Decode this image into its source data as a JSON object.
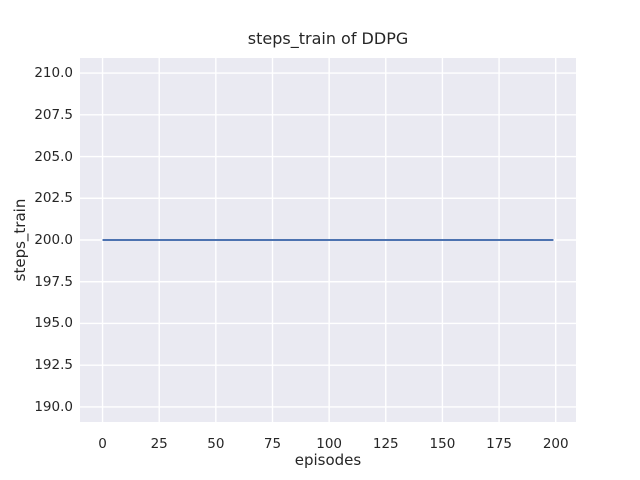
{
  "figure": {
    "background": "#ffffff",
    "text_color": "#262626"
  },
  "chart_data": {
    "type": "line",
    "title": "steps_train of DDPG",
    "xlabel": "episodes",
    "ylabel": "steps_train",
    "x_range": [
      -9.95,
      208.95
    ],
    "y_range": [
      189.1,
      210.9
    ],
    "xticks": {
      "values": [
        0,
        25,
        50,
        75,
        100,
        125,
        150,
        175,
        200
      ],
      "labels": [
        "0",
        "25",
        "50",
        "75",
        "100",
        "125",
        "150",
        "175",
        "200"
      ]
    },
    "yticks": {
      "values": [
        190.0,
        192.5,
        195.0,
        197.5,
        200.0,
        202.5,
        205.0,
        207.5,
        210.0
      ],
      "labels": [
        "190.0",
        "192.5",
        "195.0",
        "197.5",
        "200.0",
        "202.5",
        "205.0",
        "207.5",
        "210.0"
      ]
    },
    "grid": true,
    "legend": false,
    "plot_background": "#EAEAF2",
    "grid_color": "#FFFFFF",
    "series": [
      {
        "name": "steps_train",
        "color": "#4C72B0",
        "x": [
          0,
          199
        ],
        "y": [
          200,
          200
        ]
      }
    ]
  }
}
